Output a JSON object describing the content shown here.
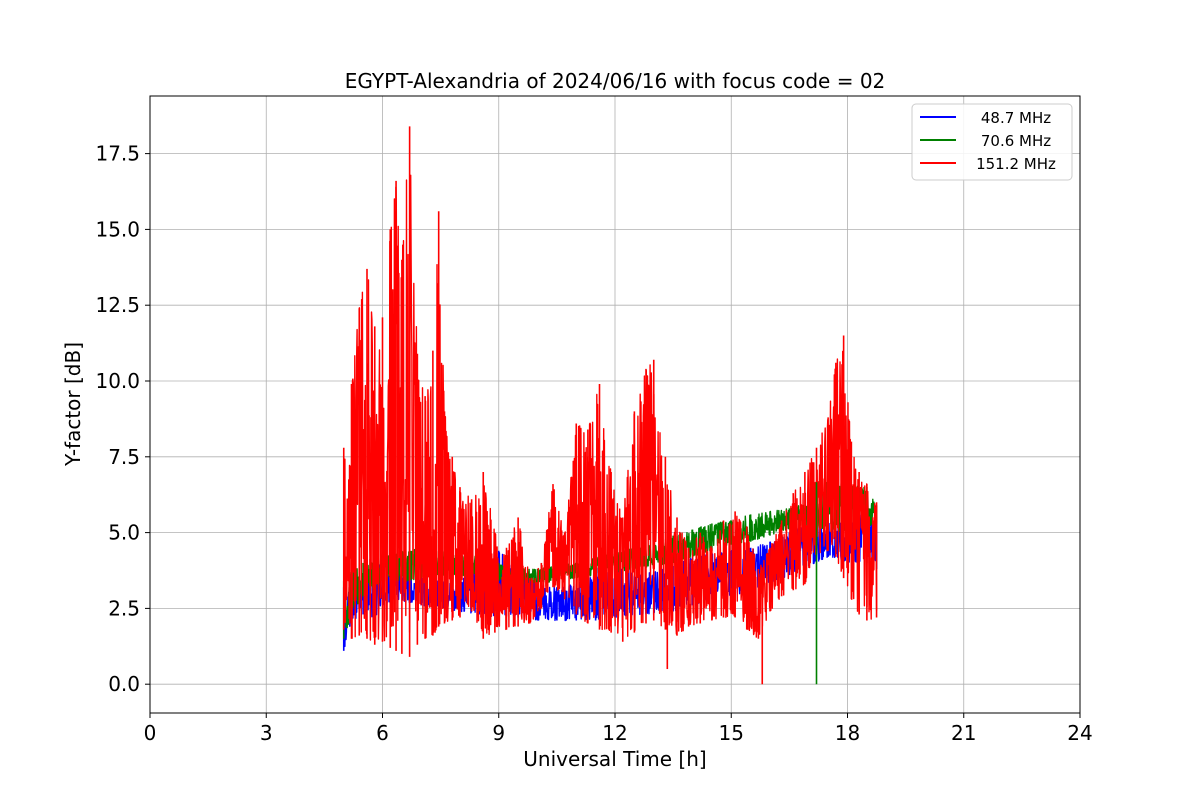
{
  "chart_data": {
    "type": "line",
    "title": "EGYPT-Alexandria of 2024/06/16 with focus code = 02",
    "xlabel": "Universal Time [h]",
    "ylabel": "Y-factor [dB]",
    "xlim": [
      0,
      24
    ],
    "ylim": [
      -0.95,
      19.4
    ],
    "xticks": [
      0,
      3,
      6,
      9,
      12,
      15,
      18,
      21,
      24
    ],
    "xtick_labels": [
      "0",
      "3",
      "6",
      "9",
      "12",
      "15",
      "18",
      "21",
      "24"
    ],
    "yticks": [
      0,
      2.5,
      5,
      7.5,
      10,
      12.5,
      15,
      17.5
    ],
    "ytick_labels": [
      "0.0",
      "2.5",
      "5.0",
      "7.5",
      "10.0",
      "12.5",
      "15.0",
      "17.5"
    ],
    "grid": true,
    "legend_position": "top-right",
    "series": [
      {
        "name": "48.7 MHz",
        "color": "#0000ff",
        "x": [
          5.0,
          5.2,
          5.5,
          5.8,
          6.0,
          6.3,
          6.6,
          7.0,
          7.5,
          8.0,
          8.5,
          9.0,
          9.5,
          10.0,
          10.5,
          11.0,
          11.5,
          12.0,
          12.5,
          13.0,
          13.5,
          14.0,
          14.5,
          15.0,
          15.5,
          16.0,
          16.5,
          17.0,
          17.5,
          18.0,
          18.5,
          18.75
        ],
        "y_low": [
          1.1,
          2.0,
          2.3,
          2.2,
          2.6,
          2.8,
          2.7,
          2.6,
          2.5,
          2.4,
          2.3,
          2.2,
          2.2,
          2.1,
          2.1,
          2.1,
          2.1,
          2.2,
          2.3,
          2.3,
          2.4,
          2.6,
          2.8,
          2.9,
          3.0,
          3.3,
          3.6,
          3.9,
          4.2,
          4.0,
          4.0,
          3.8
        ],
        "y_high": [
          3.2,
          3.1,
          3.5,
          4.0,
          3.9,
          3.9,
          3.8,
          3.6,
          3.4,
          3.3,
          4.3,
          4.4,
          3.8,
          3.3,
          3.2,
          3.3,
          3.8,
          4.2,
          3.6,
          3.7,
          3.9,
          4.2,
          4.3,
          4.4,
          4.5,
          4.7,
          5.0,
          5.3,
          5.4,
          5.3,
          6.3,
          5.5
        ]
      },
      {
        "name": "70.6 MHz",
        "color": "#008000",
        "x": [
          5.0,
          5.2,
          5.5,
          5.8,
          6.0,
          6.3,
          6.6,
          7.0,
          7.5,
          8.0,
          8.5,
          9.0,
          9.5,
          10.0,
          10.5,
          11.0,
          11.5,
          12.0,
          12.5,
          13.0,
          13.5,
          14.0,
          14.5,
          15.0,
          15.5,
          16.0,
          16.5,
          17.0,
          17.5,
          18.0,
          18.5,
          18.75
        ],
        "y_low": [
          1.5,
          2.3,
          2.9,
          3.2,
          3.4,
          3.4,
          3.4,
          3.5,
          3.6,
          3.6,
          3.5,
          3.4,
          3.3,
          3.3,
          3.4,
          3.5,
          3.6,
          3.7,
          3.8,
          3.9,
          4.0,
          4.2,
          4.4,
          4.6,
          4.7,
          4.9,
          5.1,
          5.2,
          5.1,
          5.0,
          5.2,
          5.3
        ],
        "y_high": [
          3.4,
          3.7,
          4.0,
          4.2,
          4.3,
          4.3,
          4.4,
          4.5,
          4.4,
          4.3,
          4.2,
          4.0,
          3.8,
          3.8,
          3.9,
          4.0,
          4.2,
          4.3,
          4.5,
          4.6,
          4.9,
          5.1,
          5.3,
          5.4,
          5.6,
          5.7,
          5.8,
          6.0,
          6.8,
          6.6,
          6.5,
          5.9
        ]
      },
      {
        "name": "151.2 MHz",
        "color": "#ff0000",
        "x": [
          5.0,
          5.2,
          5.4,
          5.6,
          5.8,
          6.0,
          6.2,
          6.35,
          6.5,
          6.7,
          6.9,
          7.1,
          7.3,
          7.45,
          7.6,
          7.8,
          8.0,
          8.3,
          8.6,
          8.9,
          9.2,
          9.5,
          9.8,
          10.1,
          10.4,
          10.7,
          11.0,
          11.3,
          11.6,
          11.9,
          12.2,
          12.5,
          12.8,
          13.0,
          13.3,
          13.6,
          13.9,
          14.2,
          14.5,
          14.8,
          15.1,
          15.4,
          15.7,
          16.0,
          16.3,
          16.6,
          16.9,
          17.2,
          17.5,
          17.7,
          17.9,
          18.1,
          18.3,
          18.5,
          18.75
        ],
        "y_low": [
          1.8,
          1.5,
          1.6,
          1.5,
          1.3,
          1.4,
          1.2,
          1.1,
          1.0,
          0.9,
          1.3,
          1.5,
          1.6,
          1.9,
          2.0,
          2.1,
          2.2,
          2.4,
          1.5,
          1.7,
          1.8,
          1.9,
          2.0,
          2.5,
          3.2,
          2.8,
          2.3,
          2.0,
          1.8,
          1.7,
          1.4,
          1.7,
          2.0,
          2.1,
          1.8,
          1.6,
          1.9,
          2.0,
          2.1,
          2.2,
          2.2,
          1.8,
          1.5,
          2.4,
          2.9,
          3.1,
          3.3,
          4.3,
          4.4,
          4.2,
          3.5,
          2.8,
          2.3,
          2.1,
          2.2
        ],
        "y_high": [
          7.8,
          9.9,
          12.4,
          13.7,
          11.8,
          12.1,
          15.0,
          16.6,
          14.0,
          18.4,
          10.9,
          9.5,
          11.0,
          15.6,
          9.0,
          7.5,
          6.5,
          6.1,
          7.0,
          5.0,
          4.5,
          5.5,
          3.5,
          4.0,
          6.6,
          5.0,
          8.6,
          8.4,
          9.9,
          7.0,
          5.5,
          9.0,
          10.4,
          10.7,
          7.5,
          5.5,
          4.5,
          5.0,
          4.5,
          5.4,
          5.7,
          5.2,
          3.8,
          4.5,
          5.4,
          6.3,
          7.0,
          7.8,
          8.8,
          10.6,
          11.5,
          8.0,
          7.0,
          6.6,
          6.0
        ]
      }
    ],
    "drops": [
      {
        "series": "151.2 MHz",
        "x": 15.8,
        "y": 0.0
      },
      {
        "series": "70.6 MHz",
        "x": 17.2,
        "y": 0.0
      },
      {
        "series": "151.2 MHz",
        "x": 13.35,
        "y": 0.5
      }
    ]
  }
}
